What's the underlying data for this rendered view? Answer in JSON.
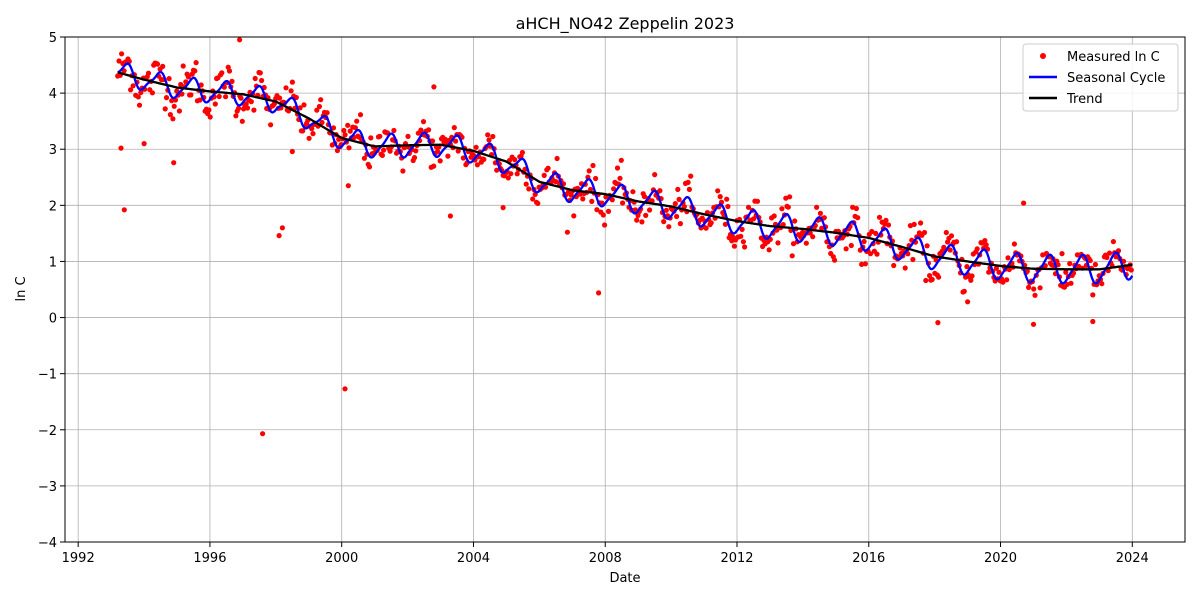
{
  "chart_data": {
    "type": "line",
    "title": "aHCH_NO42 Zeppelin 2023",
    "xlabel": "Date",
    "ylabel": "ln C",
    "xlim": [
      1991.6,
      2025.6
    ],
    "ylim": [
      -4,
      5
    ],
    "x_ticks": [
      1992,
      1996,
      2000,
      2004,
      2008,
      2012,
      2016,
      2020,
      2024
    ],
    "y_ticks": [
      -4,
      -3,
      -2,
      -1,
      0,
      1,
      2,
      3,
      4,
      5
    ],
    "grid": true,
    "legend_position": "top-right",
    "series": [
      {
        "name": "Measured ln C",
        "kind": "scatter",
        "color": "#ff0000",
        "outliers": [
          {
            "x": 1993.4,
            "y": 1.92
          },
          {
            "x": 1993.3,
            "y": 3.02
          },
          {
            "x": 1994.0,
            "y": 3.1
          },
          {
            "x": 1994.9,
            "y": 2.76
          },
          {
            "x": 1996.9,
            "y": 4.95
          },
          {
            "x": 1997.6,
            "y": -2.07
          },
          {
            "x": 1998.1,
            "y": 1.46
          },
          {
            "x": 1998.2,
            "y": 1.6
          },
          {
            "x": 1998.5,
            "y": 2.96
          },
          {
            "x": 2000.1,
            "y": -1.27
          },
          {
            "x": 2000.2,
            "y": 2.35
          },
          {
            "x": 2002.8,
            "y": 4.11
          },
          {
            "x": 2003.3,
            "y": 1.81
          },
          {
            "x": 2004.9,
            "y": 1.96
          },
          {
            "x": 2007.8,
            "y": 0.44
          },
          {
            "x": 2018.1,
            "y": -0.09
          },
          {
            "x": 2019.0,
            "y": 0.28
          },
          {
            "x": 2020.7,
            "y": 2.04
          },
          {
            "x": 2021.0,
            "y": -0.12
          },
          {
            "x": 2022.8,
            "y": -0.07
          }
        ]
      },
      {
        "name": "Seasonal Cycle",
        "kind": "line",
        "color": "#0000ff"
      },
      {
        "name": "Trend",
        "kind": "line",
        "color": "#000000",
        "x": [
          1993.2,
          1994.0,
          1995.0,
          1996.0,
          1997.0,
          1998.0,
          1999.0,
          2000.0,
          2001.0,
          2002.0,
          2003.0,
          2004.0,
          2005.0,
          2006.0,
          2007.0,
          2008.0,
          2009.0,
          2010.0,
          2011.0,
          2012.0,
          2013.0,
          2014.0,
          2015.0,
          2016.0,
          2017.0,
          2018.0,
          2019.0,
          2020.0,
          2021.0,
          2022.0,
          2023.0,
          2024.0
        ],
        "y": [
          4.37,
          4.24,
          4.1,
          4.03,
          3.98,
          3.85,
          3.55,
          3.2,
          3.05,
          3.07,
          3.08,
          2.97,
          2.78,
          2.42,
          2.27,
          2.2,
          2.07,
          1.98,
          1.84,
          1.72,
          1.63,
          1.58,
          1.51,
          1.42,
          1.26,
          1.09,
          1.0,
          0.92,
          0.87,
          0.86,
          0.86,
          0.94
        ]
      }
    ]
  }
}
